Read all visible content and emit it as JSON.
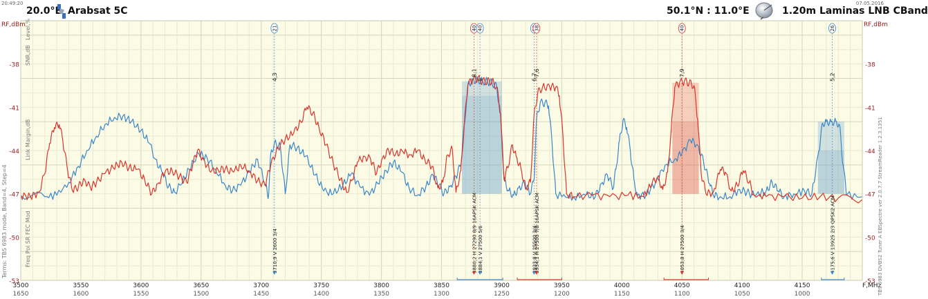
{
  "header": {
    "time": "20:49:20",
    "date": "07.05.2016",
    "sat_pos": "20.0°E",
    "sat_name": "Arabsat 5C",
    "location": "50.1°N : 11.0°E",
    "dish": "1.20m  Laminas LNB CBand",
    "satellite_icon": "satellite-icon",
    "dish_icon": "dish-icon"
  },
  "axis_labels": {
    "y_left": "RF,dBm",
    "y_right": "RF,dBm",
    "x_unit": "F,MHz",
    "level": "Level,%",
    "snr": "SNR,dB",
    "link_margin": "Link Margin,dB",
    "params": "Freq  Pol  SR  FEC  Mod",
    "terms": "Terms:  TBS 6983 mode, Band=4, Step=4",
    "right_info": "TBS 6983 DVBS2 Tuner A   EBSpectre ver 2.0.7.7  StreamReader 1.2.3.1351"
  },
  "colors": {
    "blue": "#3a86c8",
    "red": "#d9342b",
    "axis_text": "#9b1b1b",
    "grid_bg": "#fbfbe6",
    "grid_line": "#e2e2c8"
  },
  "chart_data": {
    "type": "line",
    "xlim": [
      3500,
      4200
    ],
    "ylim": [
      -53,
      -35
    ],
    "x_ticks": [
      3500,
      3550,
      3600,
      3650,
      3700,
      3750,
      3800,
      3850,
      3900,
      3950,
      4000,
      4050,
      4100,
      4150
    ],
    "x_ticks_if": [
      "1650",
      "1600",
      "1550",
      "1500",
      "1450",
      "1400",
      "1350",
      "1300",
      "1250",
      "1200",
      "1150",
      "1100",
      "1050",
      "1000"
    ],
    "y_ticks": [
      -38,
      -41,
      -44,
      -47,
      -50,
      -53
    ],
    "series": [
      {
        "color": "blue",
        "points": [
          [
            3500,
            -47.1
          ],
          [
            3520,
            -47.2
          ],
          [
            3530,
            -47.1
          ],
          [
            3540,
            -46.2
          ],
          [
            3548,
            -45.1
          ],
          [
            3555,
            -44.0
          ],
          [
            3563,
            -43.0
          ],
          [
            3570,
            -42.2
          ],
          [
            3578,
            -41.7
          ],
          [
            3585,
            -41.6
          ],
          [
            3592,
            -42.0
          ],
          [
            3600,
            -42.6
          ],
          [
            3607,
            -43.5
          ],
          [
            3612,
            -44.6
          ],
          [
            3618,
            -45.6
          ],
          [
            3623,
            -46.5
          ],
          [
            3628,
            -46.9
          ],
          [
            3633,
            -46.4
          ],
          [
            3640,
            -45.3
          ],
          [
            3648,
            -44.2
          ],
          [
            3655,
            -44.5
          ],
          [
            3662,
            -45.3
          ],
          [
            3670,
            -46.4
          ],
          [
            3676,
            -46.8
          ],
          [
            3683,
            -46.4
          ],
          [
            3690,
            -45.5
          ],
          [
            3697,
            -44.6
          ],
          [
            3704,
            -46.5
          ],
          [
            3706,
            -47.2
          ],
          [
            3708,
            -44.2
          ],
          [
            3711,
            -43.5
          ],
          [
            3716,
            -43.7
          ],
          [
            3720,
            -47.0
          ],
          [
            3724,
            -43.6
          ],
          [
            3730,
            -43.8
          ],
          [
            3737,
            -44.4
          ],
          [
            3745,
            -45.7
          ],
          [
            3752,
            -46.8
          ],
          [
            3760,
            -47.0
          ],
          [
            3768,
            -46.4
          ],
          [
            3775,
            -45.6
          ],
          [
            3782,
            -46.5
          ],
          [
            3790,
            -47.1
          ],
          [
            3797,
            -46.3
          ],
          [
            3804,
            -45.4
          ],
          [
            3810,
            -44.8
          ],
          [
            3817,
            -45.5
          ],
          [
            3823,
            -46.6
          ],
          [
            3830,
            -47.1
          ],
          [
            3837,
            -46.5
          ],
          [
            3843,
            -45.7
          ],
          [
            3848,
            -46.4
          ],
          [
            3852,
            -47.0
          ],
          [
            3857,
            -46.5
          ],
          [
            3862,
            -45.8
          ],
          [
            3866,
            -45.0
          ],
          [
            3869,
            -42.2
          ],
          [
            3872,
            -39.4
          ],
          [
            3876,
            -39.1
          ],
          [
            3880,
            -39.1
          ],
          [
            3884,
            -39.2
          ],
          [
            3888,
            -39.2
          ],
          [
            3892,
            -39.3
          ],
          [
            3896,
            -39.6
          ],
          [
            3899,
            -41.5
          ],
          [
            3902,
            -46.0
          ],
          [
            3906,
            -46.8
          ],
          [
            3910,
            -47.1
          ],
          [
            3914,
            -46.6
          ],
          [
            3919,
            -46.3
          ],
          [
            3924,
            -47.0
          ],
          [
            3927,
            -46.0
          ],
          [
            3929,
            -41.8
          ],
          [
            3932,
            -40.7
          ],
          [
            3936,
            -40.7
          ],
          [
            3939,
            -40.9
          ],
          [
            3942,
            -43.5
          ],
          [
            3945,
            -47.0
          ],
          [
            3950,
            -47.2
          ],
          [
            3960,
            -47.2
          ],
          [
            3970,
            -47.1
          ],
          [
            3978,
            -47.2
          ],
          [
            3983,
            -46.3
          ],
          [
            3988,
            -45.7
          ],
          [
            3993,
            -46.6
          ],
          [
            3995,
            -45.3
          ],
          [
            3998,
            -43.3
          ],
          [
            4001,
            -41.9
          ],
          [
            4004,
            -42.4
          ],
          [
            4007,
            -44.0
          ],
          [
            4010,
            -46.0
          ],
          [
            4013,
            -47.1
          ],
          [
            4020,
            -47.1
          ],
          [
            4028,
            -46.2
          ],
          [
            4036,
            -45.0
          ],
          [
            4044,
            -44.6
          ],
          [
            4050,
            -44.2
          ],
          [
            4057,
            -43.3
          ],
          [
            4063,
            -43.6
          ],
          [
            4068,
            -44.8
          ],
          [
            4073,
            -46.3
          ],
          [
            4076,
            -47.1
          ],
          [
            4082,
            -47.2
          ],
          [
            4090,
            -47.2
          ],
          [
            4098,
            -46.7
          ],
          [
            4104,
            -46.9
          ],
          [
            4110,
            -47.1
          ],
          [
            4120,
            -46.8
          ],
          [
            4125,
            -46.2
          ],
          [
            4130,
            -46.8
          ],
          [
            4135,
            -47.2
          ],
          [
            4143,
            -47.0
          ],
          [
            4152,
            -46.8
          ],
          [
            4158,
            -47.0
          ],
          [
            4164,
            -44.0
          ],
          [
            4167,
            -42.1
          ],
          [
            4170,
            -42.0
          ],
          [
            4174,
            -42.0
          ],
          [
            4178,
            -42.0
          ],
          [
            4181,
            -42.2
          ],
          [
            4184,
            -45.0
          ],
          [
            4187,
            -47.1
          ],
          [
            4200,
            -47.2
          ]
        ]
      },
      {
        "color": "red",
        "points": [
          [
            3500,
            -47.1
          ],
          [
            3508,
            -47.2
          ],
          [
            3515,
            -46.9
          ],
          [
            3520,
            -45.6
          ],
          [
            3524,
            -43.5
          ],
          [
            3528,
            -42.4
          ],
          [
            3532,
            -42.2
          ],
          [
            3535,
            -43.3
          ],
          [
            3539,
            -45.4
          ],
          [
            3543,
            -46.8
          ],
          [
            3548,
            -46.5
          ],
          [
            3553,
            -46.0
          ],
          [
            3558,
            -46.6
          ],
          [
            3563,
            -46.2
          ],
          [
            3570,
            -45.6
          ],
          [
            3577,
            -45.2
          ],
          [
            3584,
            -44.8
          ],
          [
            3590,
            -45.2
          ],
          [
            3597,
            -45.3
          ],
          [
            3603,
            -46.0
          ],
          [
            3609,
            -47.0
          ],
          [
            3614,
            -46.3
          ],
          [
            3620,
            -45.5
          ],
          [
            3626,
            -45.4
          ],
          [
            3632,
            -45.8
          ],
          [
            3638,
            -46.2
          ],
          [
            3643,
            -45.0
          ],
          [
            3647,
            -44.0
          ],
          [
            3652,
            -44.6
          ],
          [
            3658,
            -45.5
          ],
          [
            3664,
            -45.3
          ],
          [
            3670,
            -45.3
          ],
          [
            3677,
            -45.5
          ],
          [
            3683,
            -45.0
          ],
          [
            3690,
            -45.4
          ],
          [
            3697,
            -46.1
          ],
          [
            3703,
            -46.4
          ],
          [
            3708,
            -45.0
          ],
          [
            3714,
            -43.8
          ],
          [
            3720,
            -43.2
          ],
          [
            3727,
            -42.8
          ],
          [
            3733,
            -42.0
          ],
          [
            3738,
            -41.0
          ],
          [
            3743,
            -41.4
          ],
          [
            3748,
            -42.4
          ],
          [
            3754,
            -43.6
          ],
          [
            3760,
            -44.9
          ],
          [
            3766,
            -46.0
          ],
          [
            3771,
            -46.9
          ],
          [
            3776,
            -46.0
          ],
          [
            3780,
            -44.8
          ],
          [
            3786,
            -44.4
          ],
          [
            3791,
            -44.6
          ],
          [
            3796,
            -45.6
          ],
          [
            3801,
            -44.5
          ],
          [
            3806,
            -44.0
          ],
          [
            3812,
            -44.2
          ],
          [
            3818,
            -44.1
          ],
          [
            3824,
            -44.3
          ],
          [
            3830,
            -44.0
          ],
          [
            3836,
            -44.6
          ],
          [
            3842,
            -45.1
          ],
          [
            3847,
            -46.6
          ],
          [
            3851,
            -46.2
          ],
          [
            3855,
            -44.3
          ],
          [
            3859,
            -43.9
          ],
          [
            3862,
            -46.9
          ],
          [
            3866,
            -45.4
          ],
          [
            3869,
            -42.1
          ],
          [
            3872,
            -39.4
          ],
          [
            3876,
            -39.1
          ],
          [
            3880,
            -39.0
          ],
          [
            3884,
            -39.2
          ],
          [
            3888,
            -39.2
          ],
          [
            3892,
            -39.2
          ],
          [
            3896,
            -39.6
          ],
          [
            3899,
            -41.4
          ],
          [
            3902,
            -46.0
          ],
          [
            3905,
            -45.2
          ],
          [
            3909,
            -43.6
          ],
          [
            3912,
            -44.4
          ],
          [
            3916,
            -45.2
          ],
          [
            3920,
            -46.6
          ],
          [
            3924,
            -46.2
          ],
          [
            3927,
            -41.5
          ],
          [
            3930,
            -40.0
          ],
          [
            3934,
            -39.6
          ],
          [
            3940,
            -39.6
          ],
          [
            3945,
            -39.6
          ],
          [
            3948,
            -40.2
          ],
          [
            3951,
            -43.0
          ],
          [
            3954,
            -47.0
          ],
          [
            3960,
            -47.2
          ],
          [
            3975,
            -47.1
          ],
          [
            3990,
            -47.2
          ],
          [
            4005,
            -47.1
          ],
          [
            4018,
            -47.2
          ],
          [
            4025,
            -46.3
          ],
          [
            4030,
            -45.8
          ],
          [
            4034,
            -46.7
          ],
          [
            4038,
            -45.5
          ],
          [
            4041,
            -42.6
          ],
          [
            4044,
            -39.6
          ],
          [
            4048,
            -39.3
          ],
          [
            4052,
            -39.2
          ],
          [
            4056,
            -39.3
          ],
          [
            4060,
            -39.5
          ],
          [
            4063,
            -41.8
          ],
          [
            4066,
            -45.6
          ],
          [
            4070,
            -47.0
          ],
          [
            4076,
            -46.9
          ],
          [
            4082,
            -45.3
          ],
          [
            4086,
            -45.5
          ],
          [
            4091,
            -46.8
          ],
          [
            4096,
            -46.4
          ],
          [
            4101,
            -45.4
          ],
          [
            4106,
            -46.2
          ],
          [
            4110,
            -47.1
          ],
          [
            4120,
            -47.2
          ],
          [
            4135,
            -47.2
          ],
          [
            4150,
            -47.3
          ],
          [
            4165,
            -47.2
          ],
          [
            4180,
            -47.3
          ],
          [
            4200,
            -47.4
          ]
        ]
      }
    ],
    "carriers": [
      {
        "freq": 3711,
        "num": "21",
        "snr": "4,3",
        "params": "3710,9 V  2600 3/4",
        "color": "blue"
      },
      {
        "freq": 3877,
        "num": "40",
        "snr": "8,1",
        "params": "3880,2 H  27290 8/9 16APSK ACM",
        "color": "red"
      },
      {
        "freq": 3882,
        "num": "40",
        "snr": "8",
        "params": "3884,1 V 27500 5/6",
        "color": "blue"
      },
      {
        "freq": 3927,
        "num": "38",
        "snr": "6,7",
        "params": "3933,8 V 25500 3/4",
        "color": "blue"
      },
      {
        "freq": 3929,
        "num": "38",
        "snr": "7,6",
        "params": "3934,1 H 27500 7/8 16APSK ACM",
        "color": "red"
      },
      {
        "freq": 4050,
        "num": "40",
        "snr": "7,9",
        "params": "4053,8 H 27500 3/4",
        "color": "red"
      },
      {
        "freq": 4175,
        "num": "26",
        "snr": "5,2",
        "params": "4175,6 V 13925 2/3 QPSK2 ACM",
        "color": "blue"
      }
    ],
    "band_marks": [
      {
        "from": 3863,
        "to": 3901,
        "color": "blue"
      },
      {
        "from": 3913,
        "to": 3950,
        "color": "red"
      },
      {
        "from": 4035,
        "to": 4072,
        "color": "red"
      },
      {
        "from": 4166,
        "to": 4185,
        "color": "blue"
      }
    ]
  }
}
